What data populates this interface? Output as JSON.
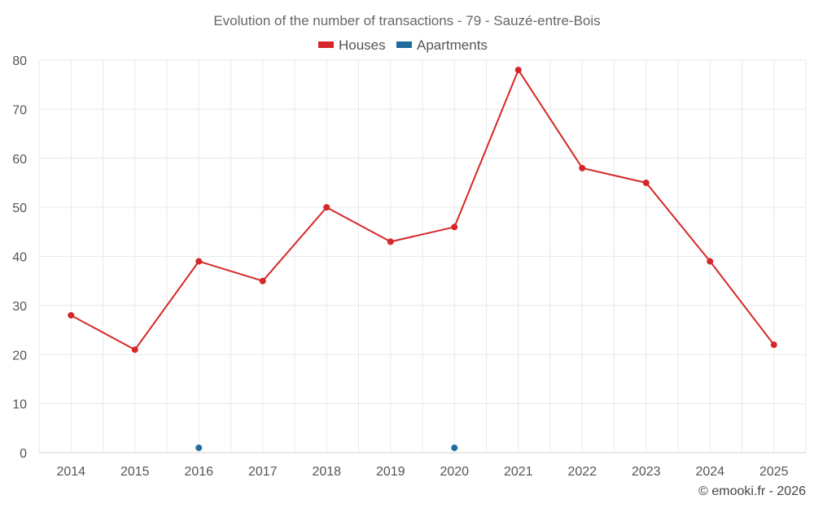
{
  "chart_data": {
    "type": "line",
    "title": "Evolution of the number of transactions - 79 - Sauzé-entre-Bois",
    "categories": [
      "2014",
      "2015",
      "2016",
      "2017",
      "2018",
      "2019",
      "2020",
      "2021",
      "2022",
      "2023",
      "2024",
      "2025"
    ],
    "series": [
      {
        "name": "Houses",
        "color": "#d62728",
        "values": [
          28,
          21,
          39,
          35,
          50,
          43,
          46,
          78,
          58,
          55,
          39,
          22
        ]
      },
      {
        "name": "Apartments",
        "color": "#1f6b9e",
        "values": [
          null,
          null,
          1,
          null,
          null,
          null,
          1,
          null,
          null,
          null,
          null,
          null
        ]
      }
    ],
    "ylim": [
      0,
      80
    ],
    "yticks": [
      0,
      10,
      20,
      30,
      40,
      50,
      60,
      70,
      80
    ],
    "grid": true,
    "legend_position": "top-center",
    "xlabel": "",
    "ylabel": ""
  },
  "credit": "© emooki.fr - 2026"
}
